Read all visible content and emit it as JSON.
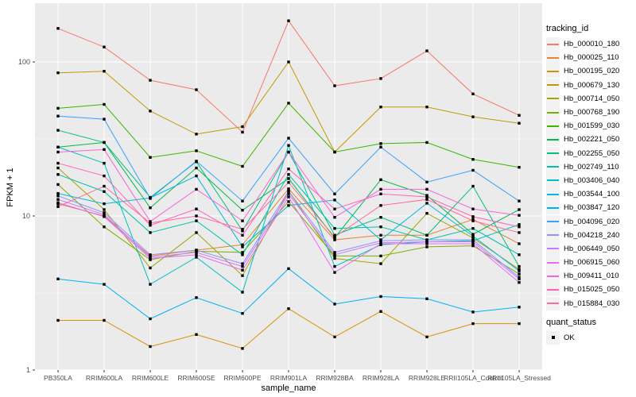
{
  "figure": {
    "background": "#FFFFFF",
    "panel_bg": "#EBEBEB",
    "grid_color": "#FFFFFF",
    "tick_text_color": "#4D4D4D",
    "tick_mark_color": "#333333",
    "point_color": "#000000",
    "legend_key_bg": "#F2F2F2"
  },
  "axes": {
    "x_label": "sample_name",
    "y_label": "FPKM + 1",
    "y_tick_labels": [
      "1",
      "10",
      "100"
    ],
    "x_tick_labels": [
      "PB350LA",
      "RRIM600LA",
      "RRIM600LE",
      "RRIM600SE",
      "RRIM600PE",
      "RRIM901LA",
      "RRIM928BA",
      "RRIM928LA",
      "RRIM928LE",
      "RRII105LA_Control",
      "RRII105LA_Stressed"
    ]
  },
  "legend": {
    "color_title": "tracking_id",
    "shape_title": "quant_status",
    "shape_items": [
      {
        "label": "OK",
        "marker": "filled-black-square"
      }
    ]
  },
  "chart_data": {
    "type": "line",
    "title": "",
    "xlabel": "sample_name",
    "ylabel": "FPKM + 1",
    "y_scale": "log10",
    "ylim": [
      1,
      240
    ],
    "y_ticks": [
      1,
      10,
      100
    ],
    "y_minor_gridlines": [
      3.162,
      31.62
    ],
    "grid": true,
    "legend_position": "right",
    "point_marker": "black-square",
    "quant_status_all": "OK",
    "categories": [
      "PB350LA",
      "RRIM600LA",
      "RRIM600LE",
      "RRIM600SE",
      "RRIM600PE",
      "RRIM901LA",
      "RRIM928BA",
      "RRIM928LA",
      "RRIM928LE",
      "RRII105LA_Control",
      "RRII105LA_Stressed"
    ],
    "series": [
      {
        "name": "Hb_000010_180",
        "color": "#F8766D",
        "values": [
          165,
          125,
          76,
          66,
          35,
          185,
          70,
          78,
          118,
          62,
          45
        ]
      },
      {
        "name": "Hb_000025_110",
        "color": "#EA8331",
        "values": [
          12,
          10,
          5.5,
          6,
          6.5,
          15,
          7,
          7.5,
          7.5,
          9.5,
          6.6
        ]
      },
      {
        "name": "Hb_000195_020",
        "color": "#D89000",
        "values": [
          2.1,
          2.1,
          1.42,
          1.7,
          1.38,
          2.5,
          1.64,
          2.4,
          1.64,
          2.0,
          2.0
        ]
      },
      {
        "name": "Hb_000679_130",
        "color": "#C09B00",
        "values": [
          85,
          87,
          48,
          34,
          38,
          100,
          26,
          51,
          51,
          44,
          40
        ]
      },
      {
        "name": "Hb_000714_050",
        "color": "#A3A500",
        "values": [
          20.5,
          11,
          4.6,
          7.8,
          4.1,
          14.5,
          5.3,
          4.9,
          10.4,
          7.2,
          4.5
        ]
      },
      {
        "name": "Hb_000768_190",
        "color": "#7CAE00",
        "values": [
          16,
          8.5,
          5.2,
          5.9,
          5.8,
          12.4,
          5.5,
          5.5,
          6.3,
          6.4,
          4.2
        ]
      },
      {
        "name": "Hb_001599_030",
        "color": "#39B600",
        "values": [
          50,
          53,
          24,
          26.5,
          21,
          54,
          26,
          29.5,
          30,
          23.3,
          20.7
        ]
      },
      {
        "name": "Hb_002221_050",
        "color": "#00BB4E",
        "values": [
          28,
          30,
          11.3,
          20.5,
          10.9,
          17.5,
          7.2,
          17.2,
          13.6,
          7.6,
          11
        ]
      },
      {
        "name": "Hb_002255_050",
        "color": "#00BF7D",
        "values": [
          36,
          30,
          13.2,
          22.5,
          8,
          26,
          7.5,
          9.8,
          7.5,
          15.6,
          4.7
        ]
      },
      {
        "name": "Hb_002749_110",
        "color": "#00C1A3",
        "values": [
          18.6,
          14.4,
          7.8,
          9.3,
          5.6,
          18.6,
          8.3,
          8.5,
          7,
          8.3,
          5.6
        ]
      },
      {
        "name": "Hb_003406_040",
        "color": "#00BFC4",
        "values": [
          28,
          22,
          3.6,
          5.4,
          3.2,
          28.7,
          4.7,
          6.5,
          6.8,
          6.9,
          8.8
        ]
      },
      {
        "name": "Hb_003544_100",
        "color": "#00BAE0",
        "values": [
          14,
          12,
          13.1,
          18.2,
          6.3,
          11.7,
          12.7,
          7,
          12.1,
          7.4,
          4.4
        ]
      },
      {
        "name": "Hb_003847_120",
        "color": "#00B0F6",
        "values": [
          3.9,
          3.6,
          2.15,
          2.95,
          2.33,
          4.55,
          2.68,
          3,
          2.9,
          2.38,
          2.56
        ]
      },
      {
        "name": "Hb_004096_020",
        "color": "#35A2FF",
        "values": [
          44.5,
          42.5,
          13,
          22.7,
          12.5,
          32,
          13.9,
          28,
          16.6,
          19.8,
          12.5
        ]
      },
      {
        "name": "Hb_004218_240",
        "color": "#9590FF",
        "values": [
          13.5,
          10.5,
          5.6,
          6,
          4.9,
          14.5,
          5.8,
          6.9,
          7,
          7,
          4
        ]
      },
      {
        "name": "Hb_006449_050",
        "color": "#C77CFF",
        "values": [
          12.8,
          10.2,
          5.4,
          5.8,
          4.7,
          13.9,
          5.6,
          6.7,
          6.8,
          6.8,
          3.9
        ]
      },
      {
        "name": "Hb_006915_060",
        "color": "#E76BF3",
        "values": [
          12.2,
          9.9,
          5.3,
          5.6,
          4.45,
          13.3,
          4.3,
          6.6,
          6.6,
          6.6,
          3.7
        ]
      },
      {
        "name": "Hb_009411_010",
        "color": "#FA62DB",
        "values": [
          26,
          27,
          9.2,
          14.9,
          9.3,
          26,
          9.8,
          14.9,
          14.9,
          11.1,
          10.1
        ]
      },
      {
        "name": "Hb_015025_050",
        "color": "#FF62BC",
        "values": [
          22,
          18.2,
          8.7,
          11.1,
          7.5,
          20.2,
          11.1,
          13.9,
          13.3,
          9.9,
          8.5
        ]
      },
      {
        "name": "Hb_015884_030",
        "color": "#FF6A98",
        "values": [
          11.5,
          15.6,
          9,
          10,
          8.2,
          16.5,
          7.3,
          11.7,
          12.8,
          9.3,
          7.8
        ]
      }
    ]
  }
}
